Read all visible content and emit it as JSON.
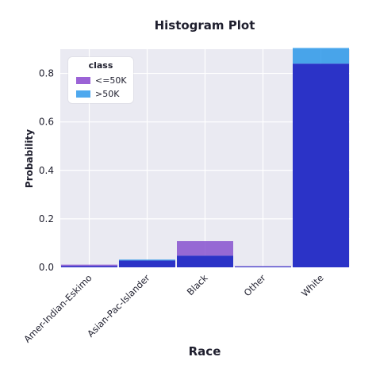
{
  "chart_data": {
    "type": "bar",
    "title": "Histogram Plot",
    "xlabel": "Race",
    "ylabel": "Probability",
    "categories": [
      "Amer-Indian-Eskimo",
      "Asian-Pac-Islander",
      "Black",
      "Other",
      "White"
    ],
    "series": [
      {
        "name": "<=50K",
        "values": [
          0.011,
          0.028,
          0.108,
          0.005,
          0.84
        ],
        "color": "#7d44cc"
      },
      {
        "name": ">50K",
        "values": [
          0.005,
          0.032,
          0.048,
          0.003,
          0.905
        ],
        "color": "#1a8fe8"
      }
    ],
    "overlap_color": "#2b33c7",
    "ylim": [
      0,
      0.9
    ],
    "yticks": [
      0.0,
      0.2,
      0.4,
      0.6,
      0.8
    ],
    "ytick_labels": [
      "0.0",
      "0.2",
      "0.4",
      "0.6",
      "0.8"
    ],
    "grid": true,
    "background_color": "#eaeaf2",
    "legend": {
      "title": "class",
      "position": "top-left",
      "entries": [
        "<=50K",
        ">50K"
      ]
    }
  }
}
